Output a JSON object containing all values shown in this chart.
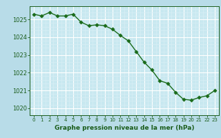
{
  "x": [
    0,
    1,
    2,
    3,
    4,
    5,
    6,
    7,
    8,
    9,
    10,
    11,
    12,
    13,
    14,
    15,
    16,
    17,
    18,
    19,
    20,
    21,
    22,
    23
  ],
  "y": [
    1025.3,
    1025.2,
    1025.4,
    1025.2,
    1025.2,
    1025.3,
    1024.85,
    1024.65,
    1024.7,
    1024.65,
    1024.45,
    1024.1,
    1023.8,
    1023.2,
    1022.6,
    1022.15,
    1021.55,
    1021.4,
    1020.9,
    1020.5,
    1020.45,
    1020.6,
    1020.7,
    1021.0
  ],
  "line_color": "#1a6b1a",
  "marker_color": "#1a6b1a",
  "bg_color": "#b8dce8",
  "plot_bg_color": "#c8e8f0",
  "grid_color": "#ffffff",
  "minor_grid_color": "#d8eef5",
  "xlabel": "Graphe pression niveau de la mer (hPa)",
  "xlabel_color": "#1a5c1a",
  "tick_color": "#1a5c1a",
  "ylim": [
    1019.6,
    1025.75
  ],
  "yticks": [
    1020,
    1021,
    1022,
    1023,
    1024,
    1025
  ],
  "xticks": [
    0,
    1,
    2,
    3,
    4,
    5,
    6,
    7,
    8,
    9,
    10,
    11,
    12,
    13,
    14,
    15,
    16,
    17,
    18,
    19,
    20,
    21,
    22,
    23
  ],
  "line_width": 1.0,
  "marker_size": 2.8
}
